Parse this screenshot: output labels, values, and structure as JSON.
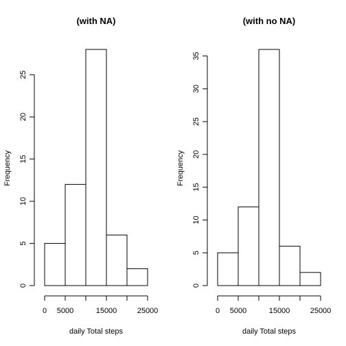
{
  "chart_data": [
    {
      "type": "bar",
      "title": "(with NA)",
      "xlabel": "daily Total steps",
      "ylabel": "Frequency",
      "bins": [
        [
          0,
          5000
        ],
        [
          5000,
          10000
        ],
        [
          10000,
          15000
        ],
        [
          15000,
          20000
        ],
        [
          20000,
          25000
        ]
      ],
      "values": [
        5,
        12,
        28,
        6,
        2
      ],
      "xlim": [
        0,
        25000
      ],
      "ylim": [
        0,
        28
      ],
      "x_ticks": [
        0,
        5000,
        10000,
        15000,
        20000,
        25000
      ],
      "x_tick_labels": [
        "0",
        "5000",
        "",
        "15000",
        "",
        "25000"
      ],
      "y_ticks": [
        0,
        5,
        10,
        15,
        20,
        25
      ],
      "y_tick_labels": [
        "0",
        "5",
        "10",
        "15",
        "20",
        "25"
      ],
      "grid": false
    },
    {
      "type": "bar",
      "title": "(with no NA)",
      "xlabel": "daily Total steps",
      "ylabel": "Frequency",
      "bins": [
        [
          0,
          5000
        ],
        [
          5000,
          10000
        ],
        [
          10000,
          15000
        ],
        [
          15000,
          20000
        ],
        [
          20000,
          25000
        ]
      ],
      "values": [
        5,
        12,
        36,
        6,
        2
      ],
      "xlim": [
        0,
        25000
      ],
      "ylim": [
        0,
        36
      ],
      "x_ticks": [
        0,
        5000,
        10000,
        15000,
        20000,
        25000
      ],
      "x_tick_labels": [
        "0",
        "5000",
        "",
        "15000",
        "",
        "25000"
      ],
      "y_ticks": [
        0,
        5,
        10,
        15,
        20,
        25,
        30,
        35
      ],
      "y_tick_labels": [
        "0",
        "5",
        "10",
        "15",
        "20",
        "25",
        "30",
        "35"
      ],
      "grid": false
    }
  ]
}
